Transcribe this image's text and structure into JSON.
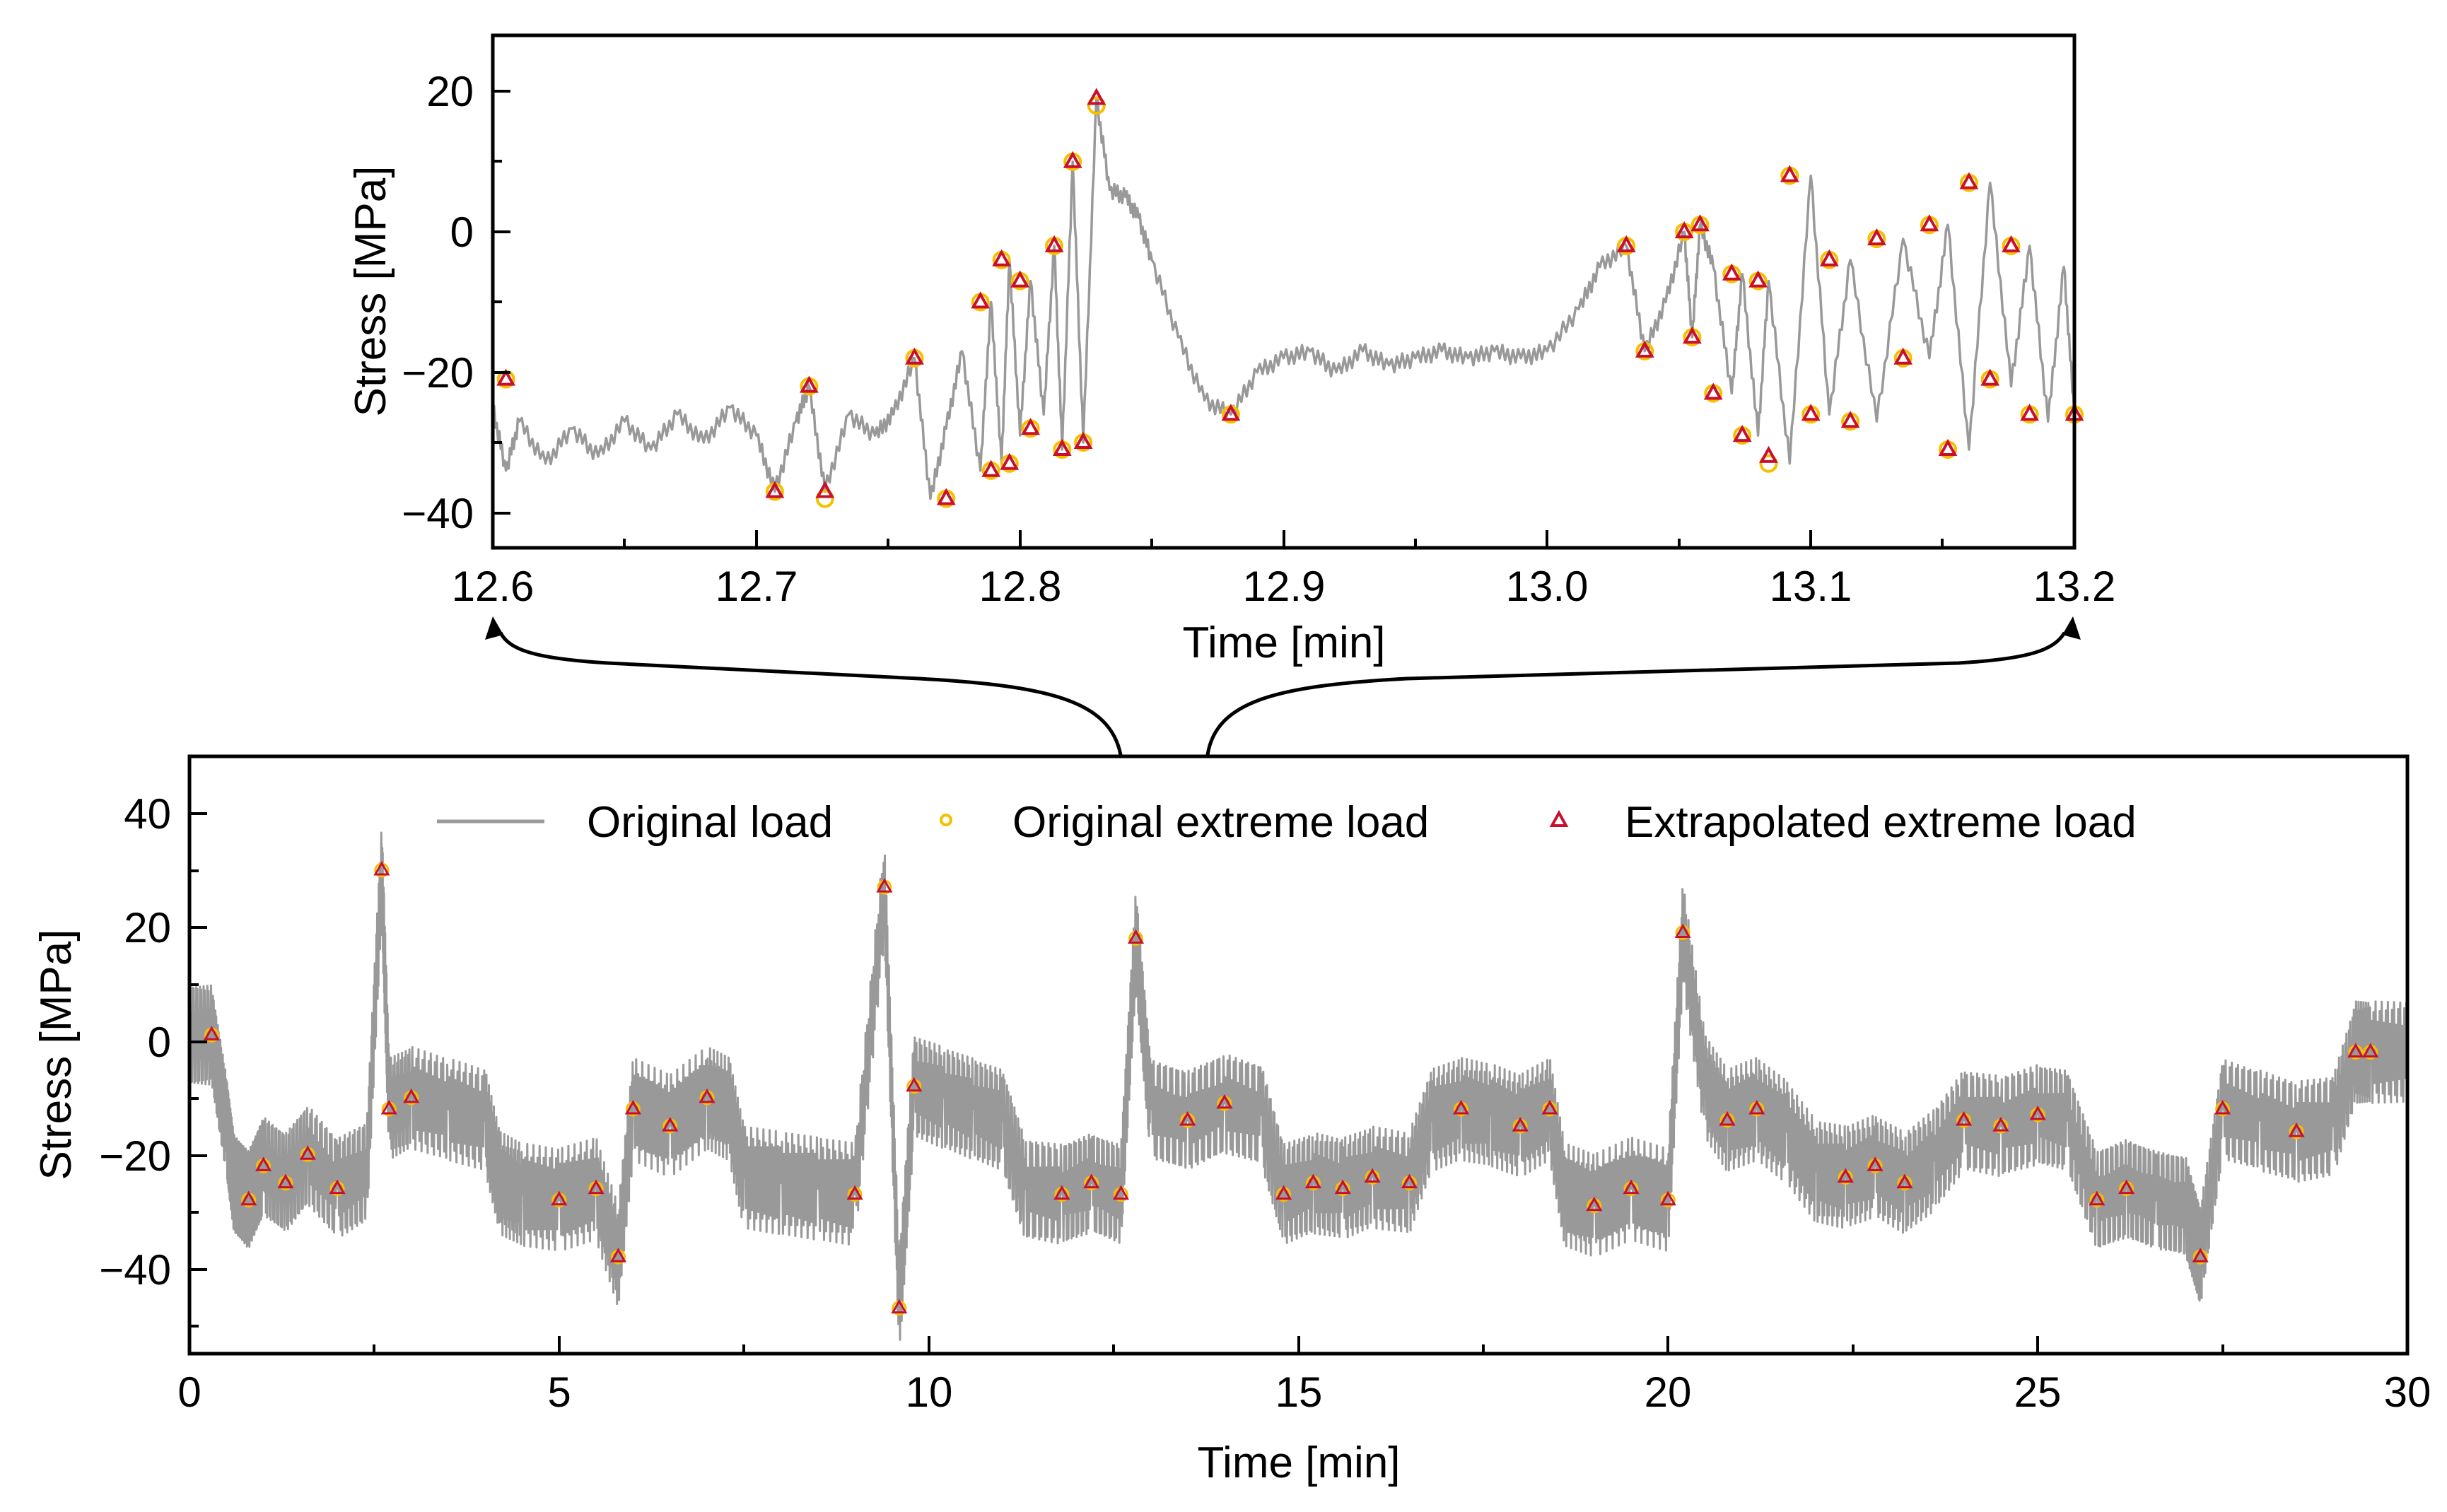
{
  "chart_data": [
    {
      "id": "zoom",
      "type": "line",
      "title": "",
      "xlabel": "Time [min]",
      "ylabel": "Stress [MPa]",
      "xlim": [
        12.6,
        13.2
      ],
      "ylim": [
        -45,
        28
      ],
      "xticks": [
        12.6,
        12.7,
        12.8,
        12.9,
        13.0,
        13.1,
        13.2
      ],
      "xtick_labels": [
        "12.6",
        "12.7",
        "12.8",
        "12.9",
        "13.0",
        "13.1",
        "13.2"
      ],
      "yticks": [
        -40,
        -20,
        0,
        20
      ],
      "ytick_labels": [
        "−40",
        "−20",
        "0",
        "20"
      ],
      "series": [
        {
          "name": "Original load",
          "color": "#999999",
          "x": [
            12.6,
            12.605,
            12.61,
            12.62,
            12.63,
            12.64,
            12.65,
            12.66,
            12.67,
            12.68,
            12.69,
            12.7,
            12.707,
            12.715,
            12.72,
            12.726,
            12.735,
            12.745,
            12.752,
            12.76,
            12.766,
            12.772,
            12.778,
            12.785,
            12.789,
            12.793,
            12.796,
            12.8,
            12.804,
            12.809,
            12.813,
            12.816,
            12.82,
            12.824,
            12.829,
            12.834,
            12.84,
            12.845,
            12.85,
            12.86,
            12.87,
            12.88,
            12.89,
            12.9,
            12.91,
            12.92,
            12.93,
            12.94,
            12.95,
            12.96,
            12.97,
            12.98,
            12.99,
            13.0,
            13.012,
            13.02,
            13.03,
            13.037,
            13.045,
            13.052,
            13.055,
            13.058,
            13.063,
            13.07,
            13.074,
            13.08,
            13.084,
            13.092,
            13.1,
            13.107,
            13.115,
            13.125,
            13.135,
            13.145,
            13.152,
            13.16,
            13.168,
            13.176,
            13.183,
            13.19,
            13.196,
            13.2
          ],
          "y": [
            -25,
            -34,
            -27,
            -33,
            -28,
            -32,
            -27,
            -31,
            -26,
            -30,
            -25,
            -29,
            -37,
            -27,
            -22,
            -37,
            -26,
            -29,
            -26,
            -18,
            -38,
            -28,
            -17,
            -34,
            -10,
            -33,
            -4,
            -29,
            -7,
            -26,
            -2,
            -31,
            10,
            -30,
            19,
            6,
            5,
            2,
            -4,
            -15,
            -24,
            -26,
            -20,
            -18,
            -17,
            -20,
            -17,
            -19,
            -18,
            -17,
            -18,
            -17,
            -18,
            -17,
            -11,
            -5,
            -2,
            -17,
            -10,
            0,
            -15,
            1,
            -5,
            -23,
            -6,
            -29,
            -7,
            -33,
            8,
            -26,
            -4,
            -27,
            -1,
            -18,
            1,
            -31,
            7,
            -22,
            -2,
            -27,
            -5,
            -26
          ]
        },
        {
          "name": "Original extreme load",
          "color": "#f5c000",
          "x": [
            12.605,
            12.707,
            12.72,
            12.726,
            12.76,
            12.772,
            12.785,
            12.789,
            12.793,
            12.796,
            12.8,
            12.804,
            12.813,
            12.816,
            12.82,
            12.824,
            12.829,
            12.88,
            13.03,
            13.037,
            13.052,
            13.055,
            13.058,
            13.063,
            13.07,
            13.074,
            13.08,
            13.084,
            13.092,
            13.1,
            13.107,
            13.115,
            13.125,
            13.135,
            13.145,
            13.152,
            13.16,
            13.168,
            13.176,
            13.183,
            13.2
          ],
          "y": [
            -21,
            -37,
            -22,
            -38,
            -18,
            -38,
            -10,
            -34,
            -4,
            -33,
            -7,
            -28,
            -2,
            -31,
            10,
            -30,
            18,
            -26,
            -2,
            -17,
            0,
            -15,
            1,
            -23,
            -6,
            -29,
            -7,
            -33,
            8,
            -26,
            -4,
            -27,
            -1,
            -18,
            1,
            -31,
            7,
            -21,
            -2,
            -26,
            -26
          ]
        },
        {
          "name": "Extrapolated extreme load",
          "color": "#c8102e",
          "x": [
            12.605,
            12.707,
            12.72,
            12.726,
            12.76,
            12.772,
            12.785,
            12.789,
            12.793,
            12.796,
            12.8,
            12.804,
            12.813,
            12.816,
            12.82,
            12.824,
            12.829,
            12.88,
            13.03,
            13.037,
            13.052,
            13.055,
            13.058,
            13.063,
            13.07,
            13.074,
            13.08,
            13.084,
            13.092,
            13.1,
            13.107,
            13.115,
            13.125,
            13.135,
            13.145,
            13.152,
            13.16,
            13.168,
            13.176,
            13.183,
            13.2
          ],
          "y": [
            -21,
            -37,
            -22,
            -37,
            -18,
            -38,
            -10,
            -34,
            -4,
            -33,
            -7,
            -28,
            -2,
            -31,
            10,
            -30,
            19,
            -26,
            -2,
            -17,
            0,
            -15,
            1,
            -23,
            -6,
            -29,
            -7,
            -32,
            8,
            -26,
            -4,
            -27,
            -1,
            -18,
            1,
            -31,
            7,
            -21,
            -2,
            -26,
            -26
          ]
        }
      ]
    },
    {
      "id": "overview",
      "type": "line",
      "title": "",
      "xlabel": "Time [min]",
      "ylabel": "Stress [MPa]",
      "xlim": [
        0,
        30
      ],
      "ylim": [
        -55,
        50
      ],
      "xticks": [
        0,
        5,
        10,
        15,
        20,
        25,
        30
      ],
      "xtick_labels": [
        "0",
        "5",
        "10",
        "15",
        "20",
        "25",
        "30"
      ],
      "yticks": [
        -40,
        -20,
        0,
        20,
        40
      ],
      "ytick_labels": [
        "−40",
        "−20",
        "0",
        "20",
        "40"
      ],
      "legend": {
        "location": "top",
        "entries": [
          "Original load",
          "Original extreme load",
          "Extrapolated extreme load"
        ]
      },
      "series": [
        {
          "name": "Original load",
          "color": "#999999",
          "x": [
            0,
            0.3,
            0.5,
            0.6,
            0.8,
            1.0,
            1.3,
            1.6,
            2.0,
            2.4,
            2.6,
            2.7,
            3.0,
            3.5,
            4.0,
            4.2,
            4.5,
            5.0,
            5.5,
            5.8,
            6.0,
            6.5,
            7.0,
            7.3,
            7.5,
            8.0,
            8.5,
            9.0,
            9.4,
            9.6,
            9.8,
            10.2,
            10.6,
            11.0,
            11.3,
            11.8,
            12.2,
            12.6,
            12.8,
            13.0,
            13.5,
            14.0,
            14.5,
            14.8,
            15.2,
            15.6,
            16.0,
            16.5,
            16.8,
            17.2,
            17.6,
            18.0,
            18.4,
            18.6,
            19.0,
            19.5,
            20.0,
            20.2,
            20.5,
            20.8,
            21.2,
            21.6,
            22.0,
            22.4,
            22.8,
            23.2,
            23.6,
            24.0,
            24.5,
            25.0,
            25.4,
            25.8,
            26.2,
            26.6,
            27.0,
            27.2,
            27.5,
            28.0,
            28.5,
            29.0,
            29.3,
            29.5,
            30.0
          ],
          "y": [
            1,
            1,
            -15,
            -25,
            -28,
            -22,
            -25,
            -20,
            -26,
            -23,
            30,
            -12,
            -10,
            -12,
            -14,
            -25,
            -27,
            -28,
            -26,
            -38,
            -12,
            -15,
            -10,
            -12,
            -24,
            -25,
            -26,
            -27,
            27,
            -47,
            -8,
            -10,
            -12,
            -14,
            -26,
            -27,
            -25,
            -27,
            18,
            -12,
            -14,
            -11,
            -13,
            -27,
            -25,
            -26,
            -24,
            -25,
            -14,
            -12,
            -13,
            -15,
            -12,
            -27,
            -29,
            -26,
            -28,
            19,
            -8,
            -14,
            -12,
            -16,
            -23,
            -24,
            -22,
            -25,
            -21,
            -14,
            -15,
            -13,
            -14,
            -28,
            -26,
            -28,
            -29,
            -38,
            -12,
            -14,
            -16,
            -15,
            -2,
            -2,
            -2
          ]
        }
      ]
    }
  ]
}
